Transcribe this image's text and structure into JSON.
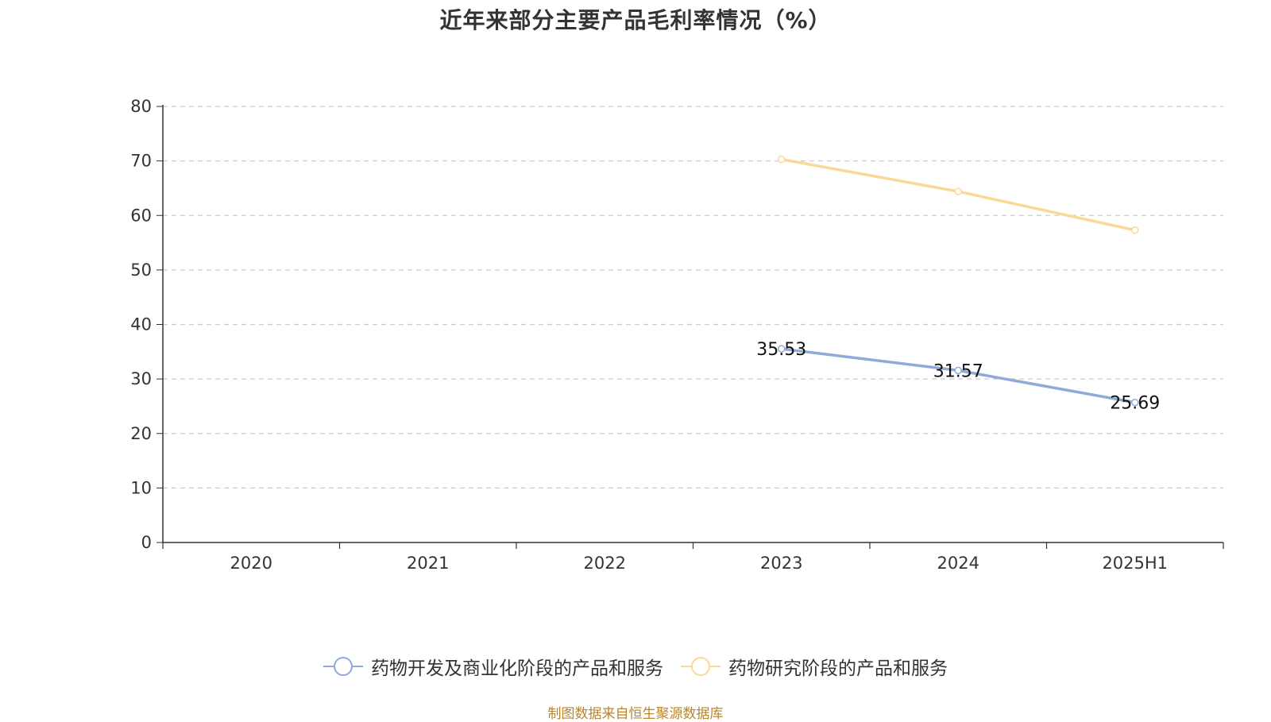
{
  "chart_data": {
    "type": "line",
    "title": "近年来部分主要产品毛利率情况（%）",
    "xlabel": "",
    "ylabel": "",
    "categories": [
      "2020",
      "2021",
      "2022",
      "2023",
      "2024",
      "2025H1"
    ],
    "ylim": [
      0,
      80
    ],
    "yticks": [
      0,
      10,
      20,
      30,
      40,
      50,
      60,
      70,
      80
    ],
    "grid": true,
    "legend_position": "bottom",
    "series": [
      {
        "name": "药物开发及商业化阶段的产品和服务",
        "color": "#8eaad8",
        "values": [
          null,
          null,
          null,
          35.53,
          31.57,
          25.69
        ],
        "labels": [
          "",
          "",
          "",
          "35.53",
          "31.57",
          "25.69"
        ],
        "show_labels": true
      },
      {
        "name": "药物研究阶段的产品和服务",
        "color": "#fbd898",
        "values": [
          null,
          null,
          null,
          70.3,
          64.4,
          57.3
        ],
        "labels": [
          "",
          "",
          "",
          "",
          "",
          ""
        ],
        "show_labels": false
      }
    ]
  },
  "source_note": "制图数据来自恒生聚源数据库"
}
